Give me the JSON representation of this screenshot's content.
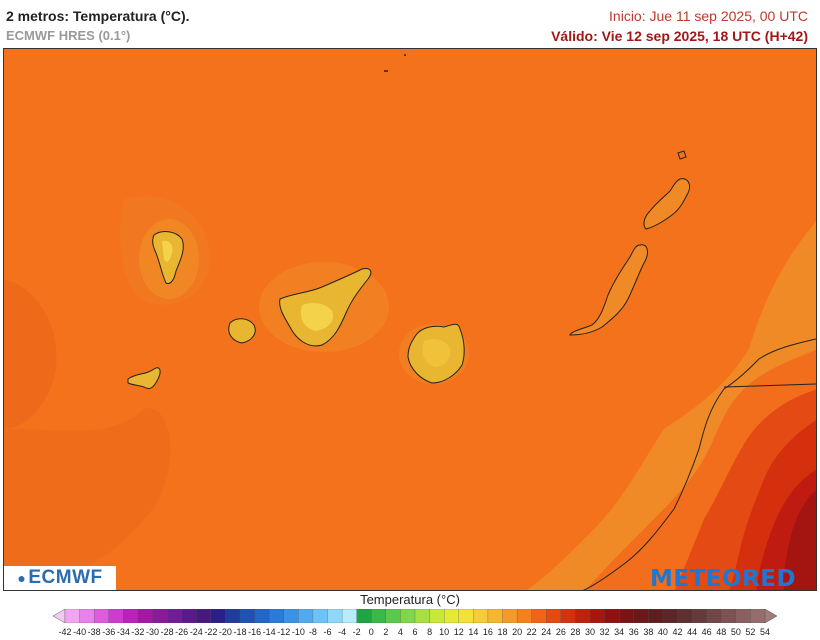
{
  "header": {
    "title": "2 metros: Temperatura (°C).",
    "model": "ECMWF HRES (0.1°)",
    "init": "Inicio: Jue 11 sep 2025, 00 UTC",
    "valid": "Válido: Vie 12 sep 2025, 18 UTC (H+42)"
  },
  "map": {
    "region": "Canary Islands",
    "colors": {
      "sea": "#f5721c",
      "land_warm": "#e8b630",
      "land_cool": "#f59628",
      "coast_warm": "#f08a26",
      "africa_hot": "#d83416",
      "africa_hotter": "#c01b10"
    }
  },
  "logos": {
    "ecmwf": "ECMWF",
    "meteored": "METEORED"
  },
  "legend": {
    "title": "Temperatura (°C)",
    "labels": [
      "-42",
      "-40",
      "-38",
      "-36",
      "-34",
      "-32",
      "-30",
      "-28",
      "-26",
      "-24",
      "-22",
      "-20",
      "-18",
      "-16",
      "-14",
      "-12",
      "-10",
      "-8",
      "-6",
      "-4",
      "-2",
      "0",
      "2",
      "4",
      "6",
      "8",
      "10",
      "12",
      "14",
      "16",
      "18",
      "20",
      "22",
      "24",
      "26",
      "28",
      "30",
      "32",
      "34",
      "36",
      "38",
      "40",
      "42",
      "44",
      "46",
      "48",
      "50",
      "52",
      "54"
    ],
    "colors": [
      "#f6c8f6",
      "#f0a6f0",
      "#e882e8",
      "#dc5cdc",
      "#cf3acf",
      "#bb21bb",
      "#a418a4",
      "#8a1a9a",
      "#6e1f96",
      "#5a1a8c",
      "#46197f",
      "#2a1f86",
      "#1f3b9c",
      "#1f52b4",
      "#2266c8",
      "#2a7ad8",
      "#3a92e6",
      "#52aaee",
      "#6ec2f4",
      "#90d8f8",
      "#b6ecfb",
      "#1fa640",
      "#3bb84a",
      "#5cc94c",
      "#82d64a",
      "#a8e044",
      "#c8e838",
      "#e4ea36",
      "#f4e23a",
      "#f6cc3a",
      "#f5b632",
      "#f59a2a",
      "#f4801e",
      "#ef6416",
      "#e44a12",
      "#d2320e",
      "#bc220c",
      "#a6160c",
      "#8e1010",
      "#7a1414",
      "#6a1818",
      "#5e1e1e",
      "#5a2626",
      "#5e3030",
      "#663a3a",
      "#704646",
      "#7c5252",
      "#886060",
      "#946e6e",
      "#a07c7c"
    ]
  }
}
